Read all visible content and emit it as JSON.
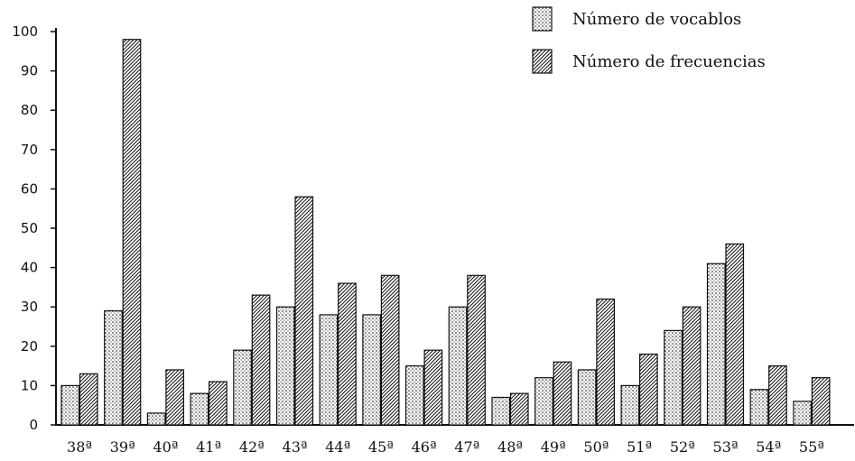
{
  "chart_data": {
    "type": "bar",
    "title": "",
    "xlabel": "",
    "ylabel": "",
    "ylim": [
      0,
      100
    ],
    "yticks": [
      0,
      10,
      20,
      30,
      40,
      50,
      60,
      70,
      80,
      90,
      100
    ],
    "grid": false,
    "legend_position": "top-right",
    "categories": [
      "38ª",
      "39ª",
      "40ª",
      "41ª",
      "42ª",
      "43ª",
      "44ª",
      "45ª",
      "46ª",
      "47ª",
      "48ª",
      "49ª",
      "50ª",
      "51ª",
      "52ª",
      "53ª",
      "54ª",
      "55ª"
    ],
    "series": [
      {
        "name": "Número de vocablos",
        "pattern": "dots",
        "values": [
          10,
          29,
          3,
          8,
          19,
          30,
          28,
          28,
          15,
          30,
          7,
          12,
          14,
          10,
          24,
          41,
          9,
          6
        ]
      },
      {
        "name": "Número de frecuencias",
        "pattern": "diagonal",
        "values": [
          13,
          98,
          14,
          11,
          33,
          58,
          36,
          38,
          19,
          38,
          8,
          16,
          32,
          18,
          30,
          46,
          15,
          12
        ]
      }
    ]
  }
}
